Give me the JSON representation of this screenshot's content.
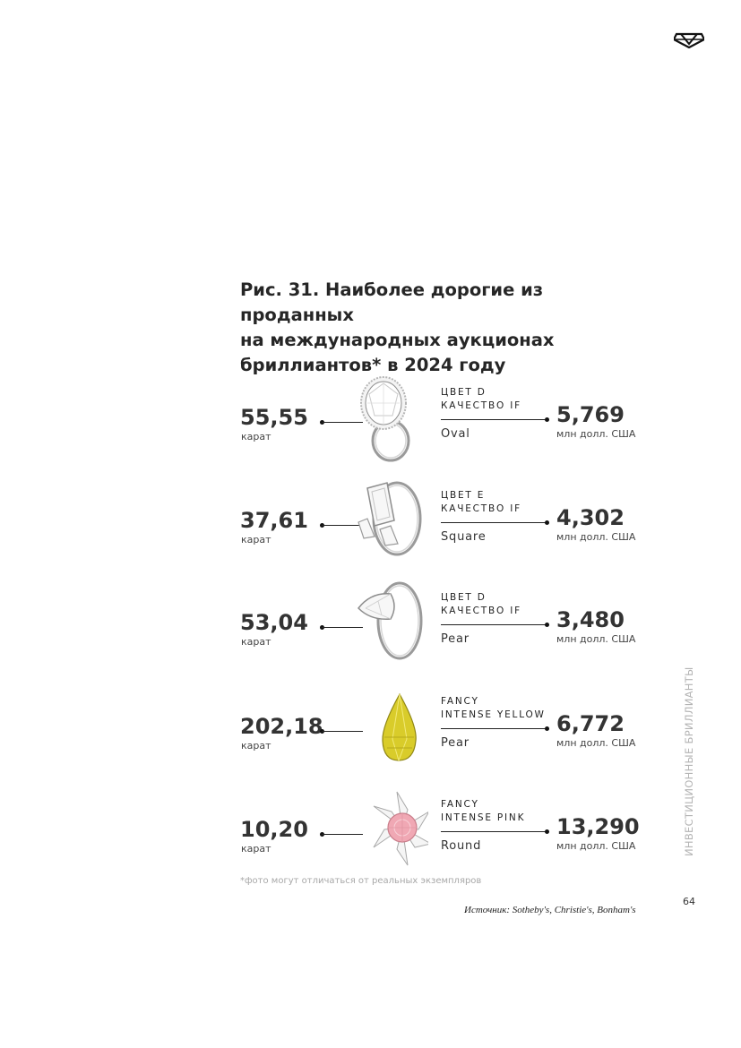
{
  "header": {
    "logo_icon": "brand-diamond-logo-icon"
  },
  "figure": {
    "title_lines": [
      "Рис. 31. Наиболее дорогие из проданных",
      "на международных аукционах",
      "бриллиантов* в 2024 году"
    ]
  },
  "items": [
    {
      "carat": "55,55",
      "carat_unit": "карат",
      "image_icon": "oval-diamond-ring-icon",
      "grade_line1": "ЦВЕТ D",
      "grade_line2": "КАЧЕСТВО IF",
      "shape": "Oval",
      "price": "5,769",
      "price_unit": "млн долл. США"
    },
    {
      "carat": "37,61",
      "carat_unit": "карат",
      "image_icon": "emerald-cut-diamond-ring-icon",
      "grade_line1": "ЦВЕТ E",
      "grade_line2": "КАЧЕСТВО IF",
      "shape": "Square",
      "price": "4,302",
      "price_unit": "млн долл. США"
    },
    {
      "carat": "53,04",
      "carat_unit": "карат",
      "image_icon": "pear-diamond-ring-icon",
      "grade_line1": "ЦВЕТ D",
      "grade_line2": "КАЧЕСТВО IF",
      "shape": "Pear",
      "price": "3,480",
      "price_unit": "млн долл. США"
    },
    {
      "carat": "202,18",
      "carat_unit": "карат",
      "image_icon": "yellow-pear-diamond-icon",
      "grade_line1": "FANCY",
      "grade_line2": "INTENSE YELLOW",
      "shape": "Pear",
      "price": "6,772",
      "price_unit": "млн долл. США"
    },
    {
      "carat": "10,20",
      "carat_unit": "карат",
      "image_icon": "pink-round-diamond-brooch-icon",
      "grade_line1": "FANCY",
      "grade_line2": "INTENSE PINK",
      "shape": "Round",
      "price": "13,290",
      "price_unit": "млн долл. США"
    }
  ],
  "footnote": "*фото могут отличаться от реальных экземпляров",
  "source": "Источник: Sotheby's, Christie's, Bonham's",
  "page_number": "64",
  "section_title": "ИНВЕСТИЦИОННЫЕ БРИЛЛИАНТЫ",
  "colors": {
    "text": "#2b2b2b",
    "muted": "#b3b3b3",
    "yellow_diamond": "#d9cc2a",
    "pink_diamond": "#f0a8b4"
  }
}
